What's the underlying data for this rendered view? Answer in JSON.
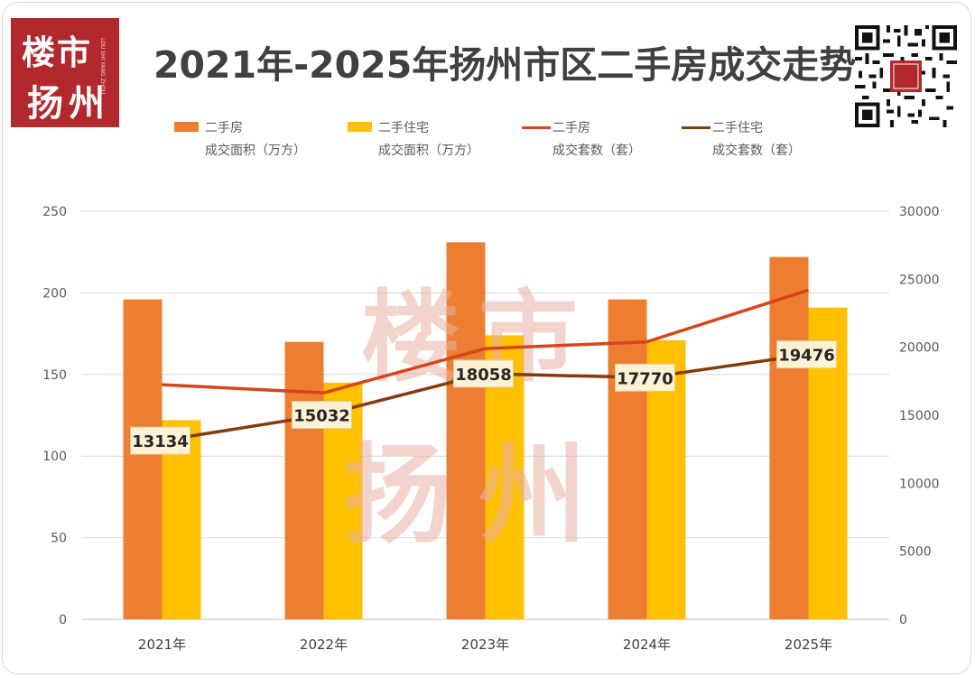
{
  "brand": {
    "logo_line1": "楼市",
    "logo_line2": "扬州",
    "logo_tiny": "LOU SHI YANG ZHOU",
    "watermark_line1": "楼市",
    "watermark_line2": "扬州",
    "colors": {
      "logo_bg": "#b3282d",
      "watermark": "#e8b1a6"
    }
  },
  "title": "2021年-2025年扬州市区二手房成交走势",
  "legend": [
    {
      "line1": "二手房",
      "line2": "成交面积（万方）",
      "kind": "bar",
      "color": "#ed7d31"
    },
    {
      "line1": "二手住宅",
      "line2": "成交面积（万方）",
      "kind": "bar",
      "color": "#ffc000"
    },
    {
      "line1": "二手房",
      "line2": "成交套数（套）",
      "kind": "line",
      "color": "#d6451b"
    },
    {
      "line1": "二手住宅",
      "line2": "成交套数（套）",
      "kind": "line",
      "color": "#843c0c"
    }
  ],
  "chart_data": {
    "type": "bar",
    "categories": [
      "2021年",
      "2022年",
      "2023年",
      "2024年",
      "2025年"
    ],
    "left_axis": {
      "ylim": [
        0,
        250
      ],
      "ticks": [
        "0",
        "50",
        "100",
        "150",
        "200",
        "250"
      ]
    },
    "right_axis": {
      "ylim": [
        0,
        30000
      ],
      "ticks": [
        "0",
        "5000",
        "10000",
        "15000",
        "20000",
        "25000",
        "30000"
      ]
    },
    "bar_series": [
      {
        "name": "二手房成交面积（万方）",
        "color": "#ed7d31",
        "values": [
          196,
          170,
          231,
          196,
          222
        ]
      },
      {
        "name": "二手住宅成交面积（万方）",
        "color": "#ffc000",
        "values": [
          122,
          145,
          174,
          171,
          191
        ]
      }
    ],
    "line_series": [
      {
        "name": "二手房成交套数（套）",
        "color": "#d6451b",
        "values": [
          17250,
          16650,
          19900,
          20400,
          24200
        ]
      },
      {
        "name": "二手住宅成交套数（套）",
        "color": "#843c0c",
        "values": [
          13134,
          15032,
          18058,
          17770,
          19476
        ],
        "labels": [
          "13134",
          "15032",
          "18058",
          "17770",
          "19476"
        ]
      }
    ],
    "grid": true
  }
}
